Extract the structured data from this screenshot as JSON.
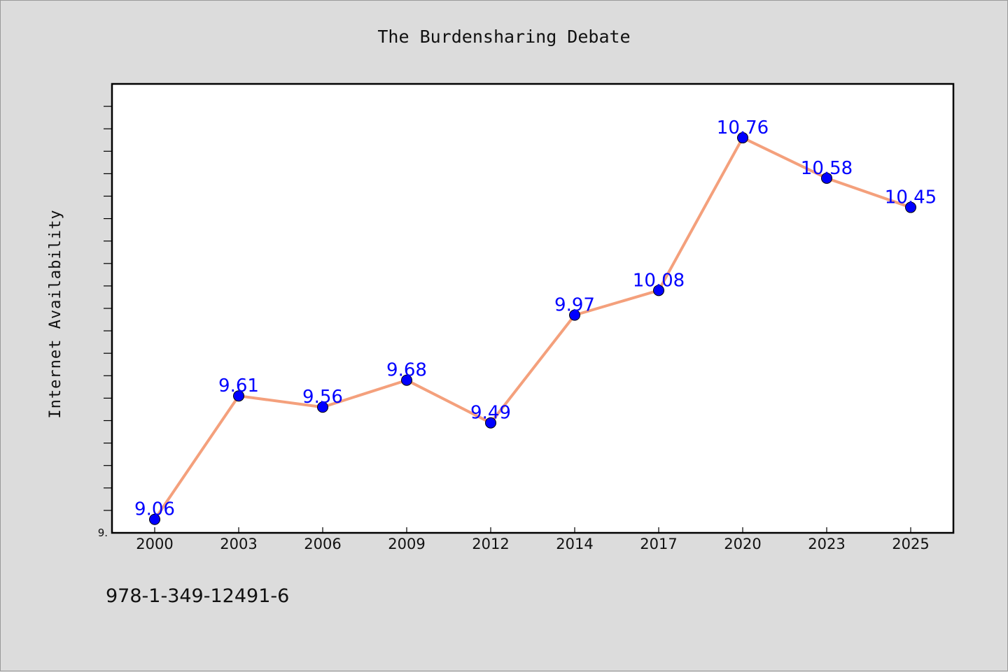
{
  "chart_data": {
    "type": "line",
    "title": "The Burdensharing Debate",
    "xlabel": "",
    "ylabel": "Internet Availability",
    "categories": [
      "2000",
      "2003",
      "2006",
      "2009",
      "2012",
      "2014",
      "2017",
      "2020",
      "2023",
      "2025"
    ],
    "series": [
      {
        "values": [
          9.06,
          9.61,
          9.56,
          9.68,
          9.49,
          9.97,
          10.08,
          10.76,
          10.58,
          10.45
        ],
        "labels": [
          "9.06",
          "9.61",
          "9.56",
          "9.68",
          "9.49",
          "9.97",
          "10.08",
          "10.76",
          "10.58",
          "10.45"
        ],
        "line_color": "#f4a07c",
        "marker_color": "#0000ff"
      }
    ],
    "ylim": [
      9.0,
      11.0
    ],
    "y_tick_labels": [
      {
        "value": 9.0,
        "label": "9."
      }
    ],
    "y_minor_tick_step": 0.1,
    "grid": false,
    "legend": "none"
  },
  "footer": {
    "text": "978-1-349-12491-6"
  }
}
